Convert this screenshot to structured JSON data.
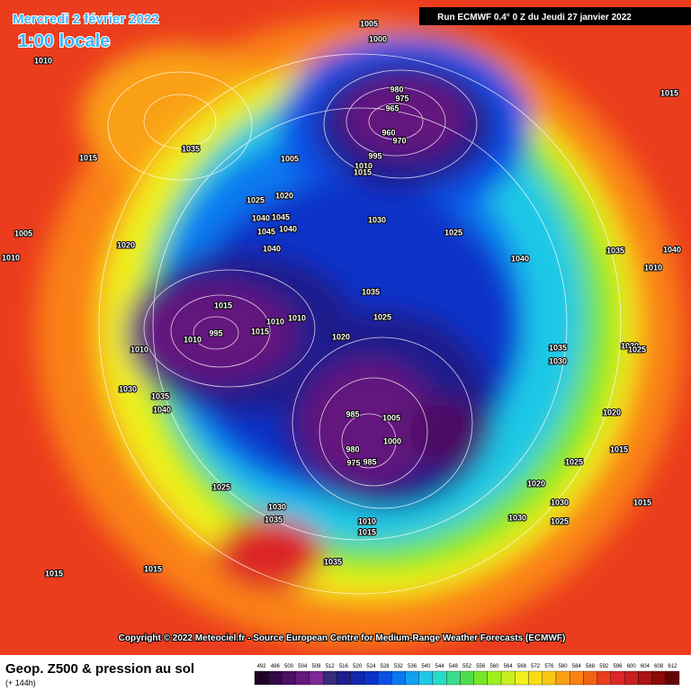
{
  "header": {
    "date": "Mercredi 2 février 2022",
    "time": "1:00 locale",
    "run": "Run ECMWF 0.4° 0 Z du Jeudi 27 janvier 2022"
  },
  "copyright": "Copyright © 2022 Meteociel.fr - Source European Centre for Medium-Range Weather Forecasts (ECMWF)",
  "footer": {
    "title": "Geop. Z500 & pression au sol",
    "subtitle": "(+ 144h)"
  },
  "scale": {
    "values": [
      492,
      496,
      500,
      504,
      508,
      512,
      516,
      520,
      524,
      528,
      532,
      536,
      540,
      544,
      548,
      552,
      556,
      560,
      564,
      568,
      572,
      576,
      580,
      584,
      588,
      592,
      596,
      600,
      604,
      608,
      612
    ],
    "colors": [
      "#1e0528",
      "#320a46",
      "#4b0f64",
      "#64197d",
      "#7d2896",
      "#3a2a7a",
      "#1e1e8c",
      "#1428aa",
      "#0a32c8",
      "#0a50e6",
      "#0a78f0",
      "#14a0f0",
      "#1ec8e6",
      "#28dcc8",
      "#3cdc8c",
      "#50dc50",
      "#78e628",
      "#a0f01e",
      "#c8f01e",
      "#f0f01e",
      "#fadc14",
      "#fac814",
      "#faa014",
      "#fa8214",
      "#f06414",
      "#eb3c1e",
      "#dc2828",
      "#c81e1e",
      "#aa1414",
      "#8c0a0a",
      "#640505"
    ]
  },
  "pressure_labels": [
    "1010",
    "1005",
    "1000",
    "980",
    "975",
    "965",
    "960",
    "970",
    "995",
    "1010",
    "1015",
    "1015",
    "1035",
    "1005",
    "1025",
    "1020",
    "1045",
    "1040",
    "1045",
    "1040",
    "1030",
    "1025",
    "1020",
    "1040",
    "1035",
    "1025",
    "1015",
    "1010",
    "1010",
    "1015",
    "995",
    "1010",
    "1020",
    "1010",
    "1030",
    "1035",
    "1040",
    "985",
    "1005",
    "1000",
    "980",
    "975",
    "985",
    "1025",
    "1030",
    "1035",
    "1010",
    "1015",
    "1035",
    "1015",
    "1015",
    "1040",
    "1035",
    "1040",
    "1010",
    "1030",
    "1025",
    "1020",
    "1015",
    "1025",
    "1030",
    "1030",
    "1025",
    "1015",
    "1015",
    "1005",
    "1010",
    "1030",
    "1035",
    "1020"
  ]
}
